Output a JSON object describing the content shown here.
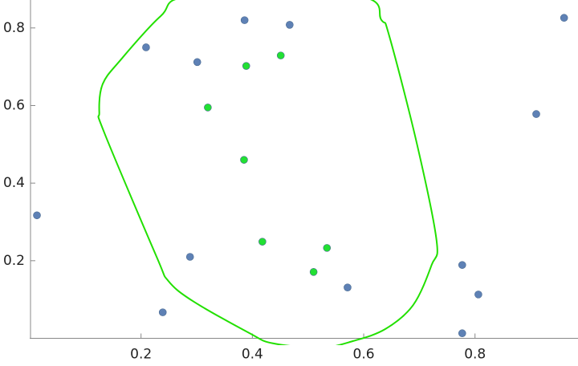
{
  "chart_data": {
    "type": "scatter",
    "xlim": [
      0,
      0.985
    ],
    "ylim": [
      0,
      0.872
    ],
    "xticks": [
      0.2,
      0.4,
      0.6,
      0.8
    ],
    "yticks": [
      0.2,
      0.4,
      0.6,
      0.8
    ],
    "axis_color": "#888888",
    "series": [
      {
        "type": "scatter",
        "color": "#5e81b5",
        "x": [
          0.386,
          0.467,
          0.209,
          0.301,
          0.96,
          0.91,
          0.013,
          0.288,
          0.239,
          0.571,
          0.777,
          0.806,
          0.777
        ],
        "values": [
          0.82,
          0.808,
          0.75,
          0.712,
          0.826,
          0.578,
          0.317,
          0.21,
          0.067,
          0.131,
          0.189,
          0.113,
          0.013
        ]
      },
      {
        "type": "scatter",
        "color": "#22e033",
        "x": [
          0.389,
          0.451,
          0.32,
          0.385,
          0.418,
          0.534,
          0.51
        ],
        "values": [
          0.702,
          0.729,
          0.595,
          0.46,
          0.249,
          0.233,
          0.171
        ]
      },
      {
        "type": "closed-curve",
        "color": "#22e000",
        "x": [
          0.293,
          0.235,
          0.163,
          0.131,
          0.125,
          0.134,
          0.228,
          0.249,
          0.293,
          0.394,
          0.437,
          0.523,
          0.581,
          0.639,
          0.689,
          0.722,
          0.731,
          0.696,
          0.646,
          0.632,
          0.588
        ],
        "values": [
          0.882,
          0.83,
          0.717,
          0.655,
          0.582,
          0.53,
          0.21,
          0.148,
          0.096,
          0.014,
          -0.013,
          -0.024,
          -0.007,
          0.024,
          0.086,
          0.189,
          0.251,
          0.499,
          0.779,
          0.82,
          0.882
        ]
      }
    ]
  }
}
